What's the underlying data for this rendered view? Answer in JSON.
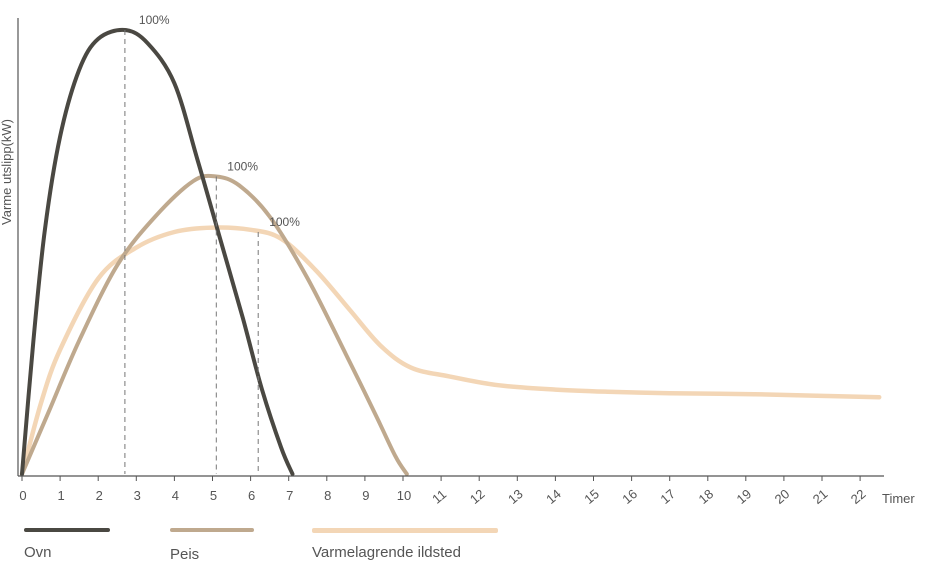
{
  "chart_data": {
    "type": "line",
    "xlabel": "Timer",
    "ylabel": "Varme utslipp(kW)",
    "x_ticks": [
      0,
      1,
      2,
      3,
      4,
      5,
      6,
      7,
      8,
      9,
      10,
      11,
      12,
      13,
      14,
      15,
      16,
      17,
      18,
      19,
      20,
      21,
      22
    ],
    "xlim": [
      0,
      22.6
    ],
    "ylim": [
      0,
      100
    ],
    "grid": false,
    "legend_position": "bottom",
    "series": [
      {
        "name": "Ovn",
        "color": "#4a4842",
        "peak_label": "100%",
        "peak_x": 2.7,
        "points": [
          [
            0,
            0
          ],
          [
            0.3,
            30
          ],
          [
            0.6,
            55
          ],
          [
            1.0,
            76
          ],
          [
            1.5,
            91
          ],
          [
            2.0,
            98
          ],
          [
            2.7,
            100
          ],
          [
            3.3,
            97
          ],
          [
            4.0,
            88
          ],
          [
            4.6,
            71
          ],
          [
            5.2,
            53
          ],
          [
            5.8,
            35
          ],
          [
            6.3,
            19
          ],
          [
            6.8,
            6
          ],
          [
            7.1,
            0
          ]
        ]
      },
      {
        "name": "Peis",
        "color": "#bfa98e",
        "peak_label": "100%",
        "peak_x": 5.1,
        "points": [
          [
            0,
            0
          ],
          [
            0.7,
            14
          ],
          [
            1.5,
            30
          ],
          [
            2.5,
            47
          ],
          [
            3.5,
            58
          ],
          [
            4.5,
            66
          ],
          [
            5.1,
            67
          ],
          [
            5.7,
            65
          ],
          [
            6.5,
            58
          ],
          [
            7.5,
            44
          ],
          [
            8.5,
            27
          ],
          [
            9.3,
            13
          ],
          [
            9.8,
            4
          ],
          [
            10.1,
            0
          ]
        ]
      },
      {
        "name": "Varmelagrende ildsted",
        "color": "#f3d6b6",
        "peak_label": "100%",
        "peak_x": 6.2,
        "points": [
          [
            0,
            0
          ],
          [
            0.5,
            16
          ],
          [
            1.0,
            28
          ],
          [
            2.0,
            44
          ],
          [
            3.0,
            51
          ],
          [
            4.0,
            54.5
          ],
          [
            5.0,
            55.5
          ],
          [
            6.0,
            55
          ],
          [
            6.8,
            53
          ],
          [
            7.7,
            46
          ],
          [
            8.6,
            37
          ],
          [
            9.4,
            29
          ],
          [
            10.2,
            24
          ],
          [
            11.2,
            22
          ],
          [
            12.5,
            20
          ],
          [
            14.0,
            19
          ],
          [
            15.5,
            18.5
          ],
          [
            17.0,
            18.2
          ],
          [
            19.0,
            18.0
          ],
          [
            21.0,
            17.6
          ],
          [
            22.5,
            17.3
          ]
        ]
      }
    ]
  },
  "legend": [
    {
      "label": "Ovn",
      "color": "#4a4842"
    },
    {
      "label": "Peis",
      "color": "#bfa98e"
    },
    {
      "label": "Varmelagrende ildsted",
      "color": "#f3d6b6"
    }
  ]
}
